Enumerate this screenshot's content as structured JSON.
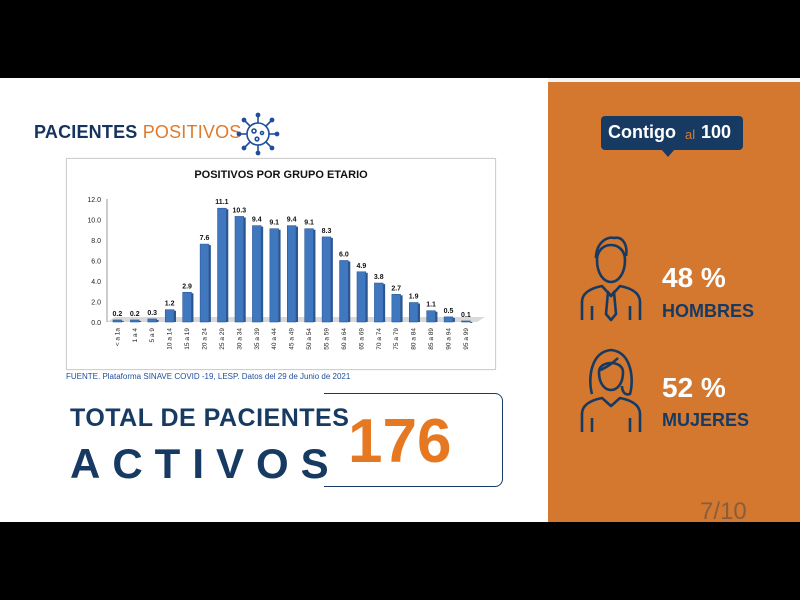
{
  "header": {
    "title_bold": "PACIENTES",
    "title_light": "POSITIVOS"
  },
  "chart_data": {
    "type": "bar",
    "title": "POSITIVOS POR GRUPO ETARIO",
    "categories": [
      "< a 1a",
      "1 a 4",
      "5 a 9",
      "10 a 14",
      "15 a 19",
      "20 a 24",
      "25 a 29",
      "30 a 34",
      "35 a 39",
      "40 a 44",
      "45 a 49",
      "50 a 54",
      "55 a 59",
      "60 a 64",
      "65 a 69",
      "70 a 74",
      "75 a 79",
      "80 a 84",
      "85 a 89",
      "90 a 94",
      "95 a 99"
    ],
    "values": [
      0.2,
      0.2,
      0.3,
      1.2,
      2.9,
      7.6,
      11.1,
      10.3,
      9.4,
      9.1,
      9.4,
      9.1,
      8.3,
      6.0,
      4.9,
      3.8,
      2.7,
      1.9,
      1.1,
      0.5,
      0.1
    ],
    "yticks": [
      "0.0",
      "2.0",
      "4.0",
      "6.0",
      "8.0",
      "10.0",
      "12.0"
    ],
    "ylim": [
      0,
      12
    ],
    "grid": false,
    "bar_color": "#3f78bf"
  },
  "source_note": "FUENTE. Plataforma SINAVE COVID -19, LESP. Datos del 29 de Junio de 2021",
  "total": {
    "line1": "TOTAL DE PACIENTES",
    "line2": "ACTIVOS",
    "value": "176"
  },
  "logo": {
    "part1": "Contigo",
    "part2": "al",
    "part3": "100"
  },
  "stats": {
    "men": {
      "percent": "48 %",
      "label": "HOMBRES"
    },
    "women": {
      "percent": "52 %",
      "label": "MUJERES"
    }
  },
  "page_indicator": "7/10",
  "colors": {
    "accent_orange": "#d4782f",
    "navy": "#173a63",
    "number_orange": "#e67821"
  }
}
